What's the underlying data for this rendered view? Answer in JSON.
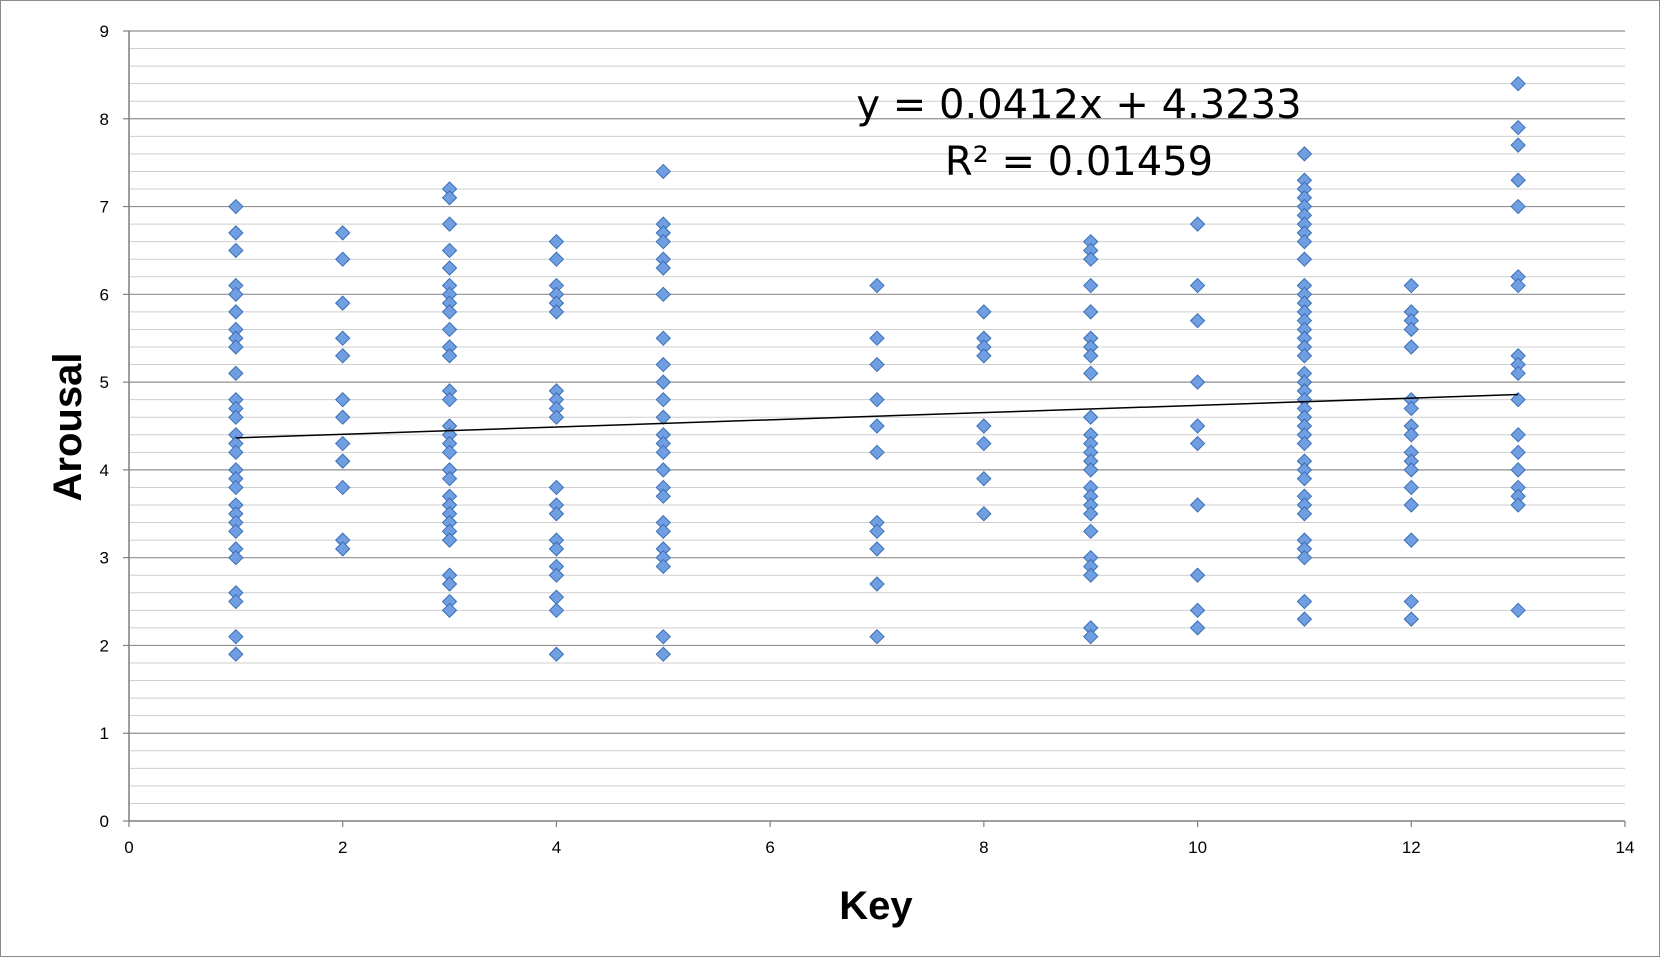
{
  "chart_data": {
    "type": "scatter",
    "xlabel": "Key",
    "ylabel": "Arousal",
    "xlim": [
      0,
      14
    ],
    "ylim": [
      0,
      9
    ],
    "x_ticks": [
      "0",
      "2",
      "4",
      "6",
      "8",
      "10",
      "12",
      "14"
    ],
    "y_ticks": [
      "0",
      "1",
      "2",
      "3",
      "4",
      "5",
      "6",
      "7",
      "8",
      "9"
    ],
    "grid": "horizontal major and minor",
    "marker": "diamond",
    "marker_color": "#6f9fe0",
    "marker_edge_color": "#3b6fb6",
    "trendline": {
      "slope": 0.0412,
      "intercept": 4.3233,
      "x_range": [
        1,
        13
      ],
      "color": "#000000"
    },
    "annotations": [
      "y = 0.0412x + 4.3233",
      "R² = 0.01459"
    ],
    "points": [
      [
        1,
        7.0
      ],
      [
        1,
        6.7
      ],
      [
        1,
        6.5
      ],
      [
        1,
        6.1
      ],
      [
        1,
        6.0
      ],
      [
        1,
        5.8
      ],
      [
        1,
        5.6
      ],
      [
        1,
        5.5
      ],
      [
        1,
        5.4
      ],
      [
        1,
        5.1
      ],
      [
        1,
        4.8
      ],
      [
        1,
        4.7
      ],
      [
        1,
        4.6
      ],
      [
        1,
        4.4
      ],
      [
        1,
        4.3
      ],
      [
        1,
        4.2
      ],
      [
        1,
        4.0
      ],
      [
        1,
        3.9
      ],
      [
        1,
        3.8
      ],
      [
        1,
        3.6
      ],
      [
        1,
        3.5
      ],
      [
        1,
        3.4
      ],
      [
        1,
        3.3
      ],
      [
        1,
        3.1
      ],
      [
        1,
        3.0
      ],
      [
        1,
        2.6
      ],
      [
        1,
        2.5
      ],
      [
        1,
        2.1
      ],
      [
        1,
        1.9
      ],
      [
        2,
        6.7
      ],
      [
        2,
        6.4
      ],
      [
        2,
        5.9
      ],
      [
        2,
        5.5
      ],
      [
        2,
        5.3
      ],
      [
        2,
        4.8
      ],
      [
        2,
        4.6
      ],
      [
        2,
        4.3
      ],
      [
        2,
        4.1
      ],
      [
        2,
        3.8
      ],
      [
        2,
        3.2
      ],
      [
        2,
        3.1
      ],
      [
        3,
        7.2
      ],
      [
        3,
        7.1
      ],
      [
        3,
        6.8
      ],
      [
        3,
        6.5
      ],
      [
        3,
        6.3
      ],
      [
        3,
        6.1
      ],
      [
        3,
        6.0
      ],
      [
        3,
        5.9
      ],
      [
        3,
        5.8
      ],
      [
        3,
        5.6
      ],
      [
        3,
        5.4
      ],
      [
        3,
        5.3
      ],
      [
        3,
        4.9
      ],
      [
        3,
        4.8
      ],
      [
        3,
        4.5
      ],
      [
        3,
        4.4
      ],
      [
        3,
        4.3
      ],
      [
        3,
        4.2
      ],
      [
        3,
        4.0
      ],
      [
        3,
        3.9
      ],
      [
        3,
        3.7
      ],
      [
        3,
        3.6
      ],
      [
        3,
        3.5
      ],
      [
        3,
        3.4
      ],
      [
        3,
        3.3
      ],
      [
        3,
        3.2
      ],
      [
        3,
        2.8
      ],
      [
        3,
        2.7
      ],
      [
        3,
        2.5
      ],
      [
        3,
        2.4
      ],
      [
        4,
        6.6
      ],
      [
        4,
        6.4
      ],
      [
        4,
        6.1
      ],
      [
        4,
        6.0
      ],
      [
        4,
        5.9
      ],
      [
        4,
        5.8
      ],
      [
        4,
        4.9
      ],
      [
        4,
        4.8
      ],
      [
        4,
        4.7
      ],
      [
        4,
        4.6
      ],
      [
        4,
        3.8
      ],
      [
        4,
        3.6
      ],
      [
        4,
        3.5
      ],
      [
        4,
        3.2
      ],
      [
        4,
        3.1
      ],
      [
        4,
        2.9
      ],
      [
        4,
        2.8
      ],
      [
        4,
        2.55
      ],
      [
        4,
        2.4
      ],
      [
        4,
        1.9
      ],
      [
        5,
        7.4
      ],
      [
        5,
        6.8
      ],
      [
        5,
        6.7
      ],
      [
        5,
        6.6
      ],
      [
        5,
        6.4
      ],
      [
        5,
        6.3
      ],
      [
        5,
        6.0
      ],
      [
        5,
        5.5
      ],
      [
        5,
        5.2
      ],
      [
        5,
        5.0
      ],
      [
        5,
        4.8
      ],
      [
        5,
        4.6
      ],
      [
        5,
        4.4
      ],
      [
        5,
        4.3
      ],
      [
        5,
        4.2
      ],
      [
        5,
        4.0
      ],
      [
        5,
        3.8
      ],
      [
        5,
        3.7
      ],
      [
        5,
        3.4
      ],
      [
        5,
        3.3
      ],
      [
        5,
        3.1
      ],
      [
        5,
        3.0
      ],
      [
        5,
        2.9
      ],
      [
        5,
        2.1
      ],
      [
        5,
        1.9
      ],
      [
        7,
        6.1
      ],
      [
        7,
        5.5
      ],
      [
        7,
        5.2
      ],
      [
        7,
        4.8
      ],
      [
        7,
        4.5
      ],
      [
        7,
        4.2
      ],
      [
        7,
        3.4
      ],
      [
        7,
        3.3
      ],
      [
        7,
        3.1
      ],
      [
        7,
        2.7
      ],
      [
        7,
        2.1
      ],
      [
        8,
        5.8
      ],
      [
        8,
        5.5
      ],
      [
        8,
        5.4
      ],
      [
        8,
        5.3
      ],
      [
        8,
        4.5
      ],
      [
        8,
        4.3
      ],
      [
        8,
        3.9
      ],
      [
        8,
        3.5
      ],
      [
        9,
        6.6
      ],
      [
        9,
        6.5
      ],
      [
        9,
        6.4
      ],
      [
        9,
        6.1
      ],
      [
        9,
        5.8
      ],
      [
        9,
        5.5
      ],
      [
        9,
        5.4
      ],
      [
        9,
        5.3
      ],
      [
        9,
        5.1
      ],
      [
        9,
        4.6
      ],
      [
        9,
        4.4
      ],
      [
        9,
        4.3
      ],
      [
        9,
        4.2
      ],
      [
        9,
        4.1
      ],
      [
        9,
        4.0
      ],
      [
        9,
        3.8
      ],
      [
        9,
        3.7
      ],
      [
        9,
        3.6
      ],
      [
        9,
        3.5
      ],
      [
        9,
        3.3
      ],
      [
        9,
        3.0
      ],
      [
        9,
        2.9
      ],
      [
        9,
        2.8
      ],
      [
        9,
        2.2
      ],
      [
        9,
        2.1
      ],
      [
        10,
        6.8
      ],
      [
        10,
        6.1
      ],
      [
        10,
        5.7
      ],
      [
        10,
        5.0
      ],
      [
        10,
        4.5
      ],
      [
        10,
        4.3
      ],
      [
        10,
        3.6
      ],
      [
        10,
        2.8
      ],
      [
        10,
        2.4
      ],
      [
        10,
        2.2
      ],
      [
        11,
        7.6
      ],
      [
        11,
        7.3
      ],
      [
        11,
        7.2
      ],
      [
        11,
        7.1
      ],
      [
        11,
        7.0
      ],
      [
        11,
        6.9
      ],
      [
        11,
        6.8
      ],
      [
        11,
        6.7
      ],
      [
        11,
        6.6
      ],
      [
        11,
        6.4
      ],
      [
        11,
        6.1
      ],
      [
        11,
        6.0
      ],
      [
        11,
        5.9
      ],
      [
        11,
        5.8
      ],
      [
        11,
        5.7
      ],
      [
        11,
        5.6
      ],
      [
        11,
        5.5
      ],
      [
        11,
        5.4
      ],
      [
        11,
        5.3
      ],
      [
        11,
        5.1
      ],
      [
        11,
        5.0
      ],
      [
        11,
        4.9
      ],
      [
        11,
        4.8
      ],
      [
        11,
        4.7
      ],
      [
        11,
        4.6
      ],
      [
        11,
        4.5
      ],
      [
        11,
        4.4
      ],
      [
        11,
        4.3
      ],
      [
        11,
        4.1
      ],
      [
        11,
        4.0
      ],
      [
        11,
        3.9
      ],
      [
        11,
        3.7
      ],
      [
        11,
        3.6
      ],
      [
        11,
        3.5
      ],
      [
        11,
        3.2
      ],
      [
        11,
        3.1
      ],
      [
        11,
        3.0
      ],
      [
        11,
        2.5
      ],
      [
        11,
        2.3
      ],
      [
        12,
        6.1
      ],
      [
        12,
        5.8
      ],
      [
        12,
        5.7
      ],
      [
        12,
        5.6
      ],
      [
        12,
        5.4
      ],
      [
        12,
        4.8
      ],
      [
        12,
        4.7
      ],
      [
        12,
        4.5
      ],
      [
        12,
        4.4
      ],
      [
        12,
        4.2
      ],
      [
        12,
        4.1
      ],
      [
        12,
        4.0
      ],
      [
        12,
        3.8
      ],
      [
        12,
        3.6
      ],
      [
        12,
        3.2
      ],
      [
        12,
        2.5
      ],
      [
        12,
        2.3
      ],
      [
        13,
        8.4
      ],
      [
        13,
        7.9
      ],
      [
        13,
        7.7
      ],
      [
        13,
        7.3
      ],
      [
        13,
        7.0
      ],
      [
        13,
        6.2
      ],
      [
        13,
        6.1
      ],
      [
        13,
        5.3
      ],
      [
        13,
        5.2
      ],
      [
        13,
        5.1
      ],
      [
        13,
        4.8
      ],
      [
        13,
        4.4
      ],
      [
        13,
        4.2
      ],
      [
        13,
        4.0
      ],
      [
        13,
        3.8
      ],
      [
        13,
        3.7
      ],
      [
        13,
        3.6
      ],
      [
        13,
        2.4
      ]
    ]
  }
}
